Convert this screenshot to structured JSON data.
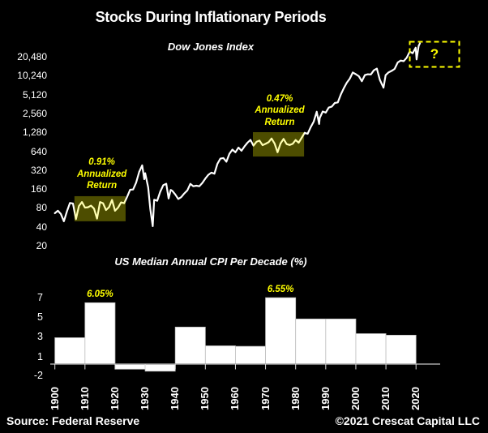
{
  "title": "Stocks During Inflationary Periods",
  "footer": {
    "source": "Source: Federal Reserve",
    "copyright": "©2021 Crescat Capital LLC"
  },
  "colors": {
    "background": "#000000",
    "text": "#ffffff",
    "accent_yellow": "#ffff00",
    "highlight_fill": "rgba(255,255,0,0.30)",
    "line": "#ffffff",
    "bar_fill": "#ffffff",
    "bar_stroke": "#bfbfbf",
    "axis": "#a6a6a6",
    "tick": "#d9d9d9"
  },
  "chart_data": [
    {
      "type": "line",
      "title": "Dow Jones Index",
      "y_scale": "log2",
      "x_range": [
        1900,
        2021
      ],
      "y_ticks": [
        "20,480",
        "10,240",
        "5,120",
        "2,560",
        "1,280",
        "640",
        "320",
        "160",
        "80",
        "40",
        "20"
      ],
      "y_tick_values": [
        20480,
        10240,
        5120,
        2560,
        1280,
        640,
        320,
        160,
        80,
        40,
        20
      ],
      "points": [
        [
          1900,
          66
        ],
        [
          1901,
          72
        ],
        [
          1902,
          64
        ],
        [
          1903,
          49
        ],
        [
          1904,
          70
        ],
        [
          1905,
          96
        ],
        [
          1906,
          94
        ],
        [
          1907,
          53
        ],
        [
          1908,
          86
        ],
        [
          1909,
          99
        ],
        [
          1910,
          81
        ],
        [
          1911,
          82
        ],
        [
          1912,
          87
        ],
        [
          1913,
          78
        ],
        [
          1914,
          54
        ],
        [
          1915,
          99
        ],
        [
          1916,
          95
        ],
        [
          1917,
          74
        ],
        [
          1918,
          82
        ],
        [
          1919,
          107
        ],
        [
          1920,
          72
        ],
        [
          1921,
          81
        ],
        [
          1922,
          98
        ],
        [
          1923,
          95
        ],
        [
          1924,
          120
        ],
        [
          1925,
          156
        ],
        [
          1926,
          157
        ],
        [
          1927,
          202
        ],
        [
          1928,
          300
        ],
        [
          1929,
          381
        ],
        [
          1929.7,
          230
        ],
        [
          1930,
          286
        ],
        [
          1931,
          170
        ],
        [
          1931.7,
          77
        ],
        [
          1932.5,
          41
        ],
        [
          1933,
          108
        ],
        [
          1934,
          104
        ],
        [
          1935,
          144
        ],
        [
          1936,
          184
        ],
        [
          1937,
          194
        ],
        [
          1937.8,
          113
        ],
        [
          1938.5,
          155
        ],
        [
          1939,
          150
        ],
        [
          1940,
          131
        ],
        [
          1941,
          111
        ],
        [
          1942,
          119
        ],
        [
          1943,
          136
        ],
        [
          1944,
          152
        ],
        [
          1945,
          193
        ],
        [
          1946,
          177
        ],
        [
          1947,
          181
        ],
        [
          1948,
          177
        ],
        [
          1949,
          200
        ],
        [
          1950,
          235
        ],
        [
          1951,
          269
        ],
        [
          1952,
          292
        ],
        [
          1953,
          281
        ],
        [
          1954,
          404
        ],
        [
          1955,
          488
        ],
        [
          1956,
          499
        ],
        [
          1957,
          436
        ],
        [
          1958,
          584
        ],
        [
          1959,
          679
        ],
        [
          1960,
          616
        ],
        [
          1961,
          731
        ],
        [
          1962,
          652
        ],
        [
          1963,
          763
        ],
        [
          1964,
          874
        ],
        [
          1965,
          969
        ],
        [
          1966,
          786
        ],
        [
          1967,
          905
        ],
        [
          1968,
          944
        ],
        [
          1969,
          800
        ],
        [
          1970,
          839
        ],
        [
          1971,
          890
        ],
        [
          1972,
          1020
        ],
        [
          1973,
          851
        ],
        [
          1974,
          616
        ],
        [
          1975,
          852
        ],
        [
          1976,
          1005
        ],
        [
          1977,
          831
        ],
        [
          1978,
          805
        ],
        [
          1979,
          839
        ],
        [
          1980,
          964
        ],
        [
          1981,
          875
        ],
        [
          1982,
          1047
        ],
        [
          1983,
          1259
        ],
        [
          1984,
          1212
        ],
        [
          1985,
          1547
        ],
        [
          1986,
          1896
        ],
        [
          1987,
          2722
        ],
        [
          1987.8,
          1739
        ],
        [
          1988,
          2169
        ],
        [
          1989,
          2753
        ],
        [
          1990,
          2634
        ],
        [
          1991,
          3169
        ],
        [
          1992,
          3301
        ],
        [
          1993,
          3754
        ],
        [
          1994,
          3834
        ],
        [
          1995,
          5117
        ],
        [
          1996,
          6448
        ],
        [
          1997,
          7908
        ],
        [
          1998,
          9181
        ],
        [
          1999,
          11497
        ],
        [
          2000,
          10788
        ],
        [
          2001,
          10022
        ],
        [
          2002,
          8342
        ],
        [
          2003,
          10454
        ],
        [
          2004,
          10783
        ],
        [
          2005,
          10718
        ],
        [
          2006,
          12463
        ],
        [
          2007,
          13265
        ],
        [
          2008,
          8776
        ],
        [
          2009.2,
          6594
        ],
        [
          2009.9,
          10428
        ],
        [
          2010.9,
          11578
        ],
        [
          2011.9,
          12218
        ],
        [
          2012.9,
          13104
        ],
        [
          2013.9,
          16577
        ],
        [
          2014.9,
          17823
        ],
        [
          2015.9,
          17425
        ],
        [
          2016.9,
          19763
        ],
        [
          2017.9,
          24719
        ],
        [
          2018.9,
          23327
        ],
        [
          2019.9,
          28538
        ],
        [
          2020.2,
          18592
        ],
        [
          2020.9,
          30606
        ],
        [
          2021.3,
          33500
        ]
      ],
      "highlights": [
        {
          "id": "1910s",
          "year_start": 1906.5,
          "year_end": 1923.5,
          "value_low": 49,
          "value_high": 123
        },
        {
          "id": "1970s",
          "year_start": 1965.8,
          "year_end": 1982.8,
          "value_low": 527,
          "value_high": 1288
        }
      ],
      "annotations": [
        {
          "id": "1910s",
          "lines": [
            "0.91%",
            "Annualized",
            "Return"
          ],
          "year": 1915.6,
          "value": 427
        },
        {
          "id": "1970s",
          "lines": [
            "0.47%",
            "Annualized",
            "Return"
          ],
          "year": 1974.7,
          "value": 4367
        }
      ],
      "future_label": "?"
    },
    {
      "type": "bar",
      "title": "US Median Annual CPI Per Decade (%)",
      "categories": [
        1900,
        1910,
        1920,
        1930,
        1940,
        1950,
        1960,
        1970,
        1980,
        1990,
        2000,
        2010
      ],
      "values": [
        2.6,
        6.05,
        -0.5,
        -0.7,
        3.65,
        1.8,
        1.75,
        6.55,
        4.45,
        4.45,
        3.0,
        2.85
      ],
      "x_tick_labels": [
        "1900",
        "1910",
        "1920",
        "1930",
        "1940",
        "1950",
        "1960",
        "1970",
        "1980",
        "1990",
        "2000",
        "2010",
        "2020"
      ],
      "y_ticks": [
        "7",
        "5",
        "3",
        "1",
        "-2"
      ],
      "y_tick_values": [
        7,
        5,
        3,
        1,
        -2
      ],
      "ylim": [
        -2,
        8
      ],
      "bar_labels": [
        {
          "index": 1,
          "text": "6.05%"
        },
        {
          "index": 7,
          "text": "6.55%"
        }
      ]
    }
  ]
}
